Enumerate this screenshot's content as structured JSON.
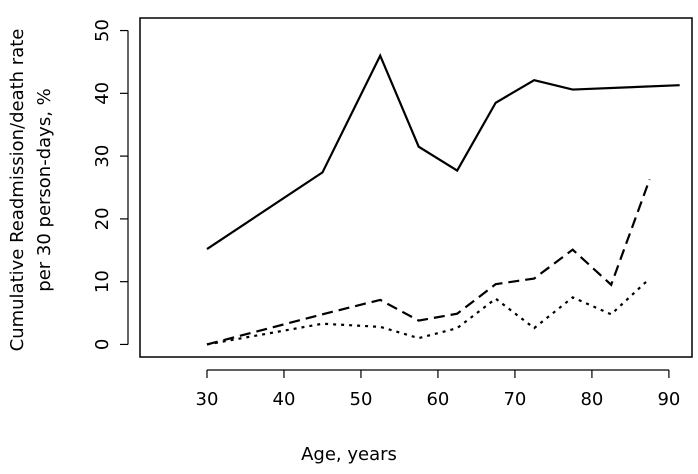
{
  "chart_data": {
    "type": "line",
    "xlabel": "Age, years",
    "ylabel": [
      "Cumulative Readmission/death rate",
      "per 30 person-days, %"
    ],
    "xlim": [
      21.3,
      93.0
    ],
    "ylim": [
      -2,
      52
    ],
    "xticks": [
      30,
      40,
      50,
      60,
      70,
      80,
      90
    ],
    "yticks": [
      0,
      10,
      20,
      30,
      40,
      50
    ],
    "series": [
      {
        "color": "#000000",
        "linestyle": "solid",
        "x": [
          30,
          45,
          52.5,
          57.5,
          62.5,
          67.5,
          72.5,
          77.5,
          91.4
        ],
        "values": [
          15.2,
          27.4,
          46,
          31.5,
          27.7,
          38.5,
          42.1,
          40.6,
          41.3
        ]
      },
      {
        "color": "#000000",
        "linestyle": "dashed",
        "x": [
          30,
          45,
          52.5,
          57.5,
          62.5,
          67.5,
          72.5,
          77.5,
          82.5,
          87.5
        ],
        "values": [
          0,
          4.8,
          7.1,
          3.8,
          4.9,
          9.6,
          10.5,
          15.1,
          9.5,
          26.3
        ]
      },
      {
        "color": "#000000",
        "linestyle": "dotted",
        "x": [
          30,
          45,
          52.5,
          57.5,
          62.5,
          67.5,
          72.5,
          77.5,
          82.5,
          87.5
        ],
        "values": [
          0,
          3.3,
          2.8,
          1.0,
          2.6,
          7.3,
          2.6,
          7.5,
          4.8,
          10.5
        ]
      }
    ]
  }
}
